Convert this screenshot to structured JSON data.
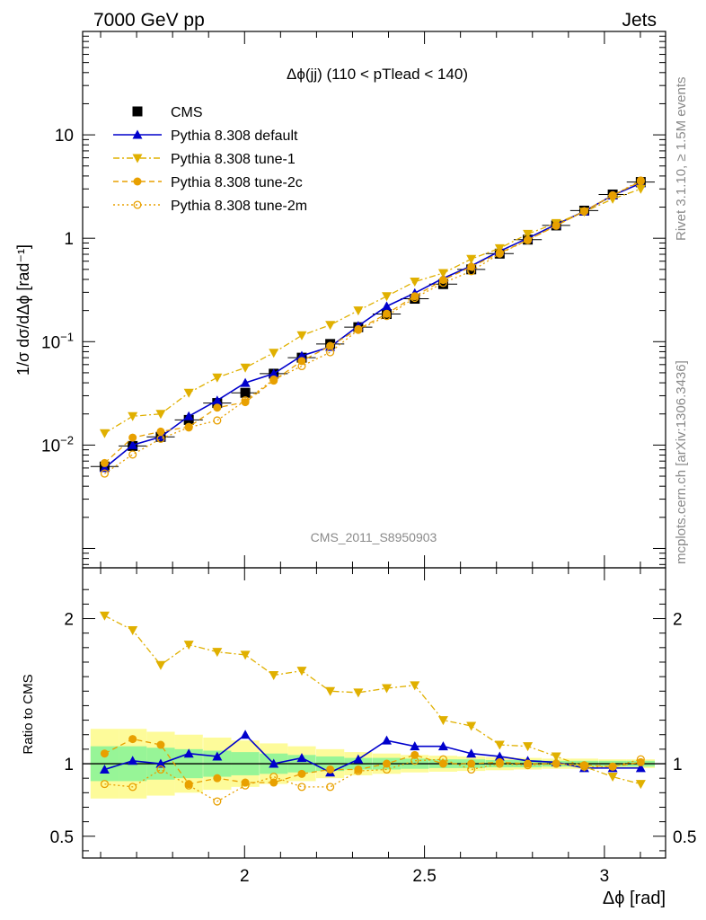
{
  "header": {
    "left": "7000 GeV pp",
    "right": "Jets"
  },
  "side": {
    "rivet": "Rivet 3.1.10, ≥ 1.5M events",
    "mcplots": "mcplots.cern.ch [arXiv:1306.3436]"
  },
  "watermark": "CMS_2011_S8950903",
  "chart_data": [
    {
      "type": "scatter",
      "panel": "main",
      "title": "Δϕ(jj) (110 < pTlead <  140)",
      "ylabel": "1/σ dσ/dΔϕ [rad⁻¹]",
      "yscale": "log",
      "xlim": [
        1.55,
        3.17
      ],
      "ylim": [
        0.00065,
        100
      ],
      "yticks": [
        {
          "v": 0.01,
          "base": "10",
          "exp": "−2"
        },
        {
          "v": 0.1,
          "base": "10",
          "exp": "−1"
        },
        {
          "v": 1,
          "base": "1",
          "exp": ""
        },
        {
          "v": 10,
          "base": "10",
          "exp": ""
        }
      ],
      "legend": [
        "CMS",
        "Pythia 8.308 default",
        "Pythia 8.308 tune-1",
        "Pythia 8.308 tune-2c",
        "Pythia 8.308 tune-2m"
      ],
      "legend_position": "top-left",
      "x": [
        1.611,
        1.689,
        1.767,
        1.845,
        1.924,
        2.002,
        2.081,
        2.159,
        2.238,
        2.316,
        2.395,
        2.473,
        2.552,
        2.63,
        2.709,
        2.787,
        2.866,
        2.944,
        3.023,
        3.101
      ],
      "series": [
        {
          "name": "CMS",
          "marker": "square",
          "color": "#000000",
          "values": [
            0.0062,
            0.0098,
            0.012,
            0.0175,
            0.0255,
            0.032,
            0.049,
            0.07,
            0.095,
            0.138,
            0.185,
            0.26,
            0.36,
            0.5,
            0.71,
            0.97,
            1.33,
            1.85,
            2.65,
            3.5
          ]
        },
        {
          "name": "Pythia 8.308 default",
          "marker": "triangle-up",
          "color": "#0000cc",
          "line": "solid",
          "values": [
            0.006,
            0.01,
            0.012,
            0.019,
            0.027,
            0.04,
            0.049,
            0.073,
            0.089,
            0.142,
            0.22,
            0.295,
            0.41,
            0.54,
            0.75,
            1.0,
            1.36,
            1.82,
            2.6,
            3.4
          ]
        },
        {
          "name": "Pythia 8.308 tune-1",
          "marker": "triangle-down",
          "color": "#e0b000",
          "line": "dashdot",
          "values": [
            0.013,
            0.019,
            0.02,
            0.032,
            0.045,
            0.056,
            0.078,
            0.115,
            0.145,
            0.2,
            0.275,
            0.38,
            0.46,
            0.63,
            0.8,
            1.1,
            1.4,
            1.8,
            2.4,
            3.0
          ]
        },
        {
          "name": "Pythia 8.308 tune-2c",
          "marker": "circle",
          "color": "#e8a000",
          "line": "dashed",
          "values": [
            0.0067,
            0.0118,
            0.0135,
            0.015,
            0.023,
            0.026,
            0.042,
            0.065,
            0.091,
            0.132,
            0.186,
            0.275,
            0.395,
            0.53,
            0.72,
            0.96,
            1.32,
            1.83,
            2.6,
            3.55
          ]
        },
        {
          "name": "Pythia 8.308 tune-2m",
          "marker": "circle-open",
          "color": "#e8a000",
          "line": "dotted",
          "values": [
            0.0053,
            0.0081,
            0.0115,
            0.0148,
            0.0173,
            0.027,
            0.043,
            0.058,
            0.079,
            0.13,
            0.177,
            0.265,
            0.37,
            0.48,
            0.71,
            0.96,
            1.33,
            1.82,
            2.6,
            3.62
          ]
        }
      ]
    },
    {
      "type": "scatter",
      "panel": "ratio",
      "ylabel": "Ratio to CMS",
      "xlabel": "Δϕ [rad]",
      "xlim": [
        1.55,
        3.17
      ],
      "ylim": [
        0.35,
        2.35
      ],
      "xticks": [
        "2",
        "2.5",
        "3"
      ],
      "yticks": [
        "0.5",
        "1",
        "2"
      ],
      "band_1sigma_halfwidth": [
        0.12,
        0.12,
        0.11,
        0.1,
        0.09,
        0.08,
        0.07,
        0.06,
        0.05,
        0.04,
        0.04,
        0.035,
        0.03,
        0.03,
        0.025,
        0.025,
        0.02,
        0.02,
        0.02,
        0.02
      ],
      "band_2sigma_halfwidth": [
        0.24,
        0.24,
        0.22,
        0.2,
        0.18,
        0.16,
        0.14,
        0.12,
        0.1,
        0.08,
        0.07,
        0.06,
        0.055,
        0.05,
        0.045,
        0.04,
        0.035,
        0.035,
        0.03,
        0.03
      ],
      "series": [
        {
          "name": "Pythia 8.308 default",
          "values": [
            0.96,
            1.02,
            1.0,
            1.07,
            1.05,
            1.2,
            1.0,
            1.04,
            0.94,
            1.03,
            1.16,
            1.12,
            1.12,
            1.07,
            1.05,
            1.02,
            1.01,
            0.97,
            0.97,
            0.97
          ]
        },
        {
          "name": "Pythia 8.308 tune-1",
          "values": [
            2.02,
            1.92,
            1.68,
            1.82,
            1.77,
            1.75,
            1.61,
            1.64,
            1.5,
            1.49,
            1.52,
            1.54,
            1.3,
            1.26,
            1.13,
            1.12,
            1.05,
            0.98,
            0.91,
            0.86
          ]
        },
        {
          "name": "Pythia 8.308 tune-2c",
          "values": [
            1.07,
            1.17,
            1.13,
            0.86,
            0.9,
            0.87,
            0.87,
            0.93,
            0.96,
            0.96,
            1.0,
            1.06,
            1.0,
            1.0,
            1.01,
            1.0,
            1.0,
            0.99,
            0.98,
            1.01
          ]
        },
        {
          "name": "Pythia 8.308 tune-2m",
          "values": [
            0.86,
            0.84,
            0.96,
            0.85,
            0.74,
            0.85,
            0.91,
            0.84,
            0.84,
            0.95,
            0.96,
            1.02,
            1.03,
            0.96,
            1.0,
            0.99,
            1.0,
            0.98,
            0.98,
            1.03
          ]
        }
      ]
    }
  ]
}
